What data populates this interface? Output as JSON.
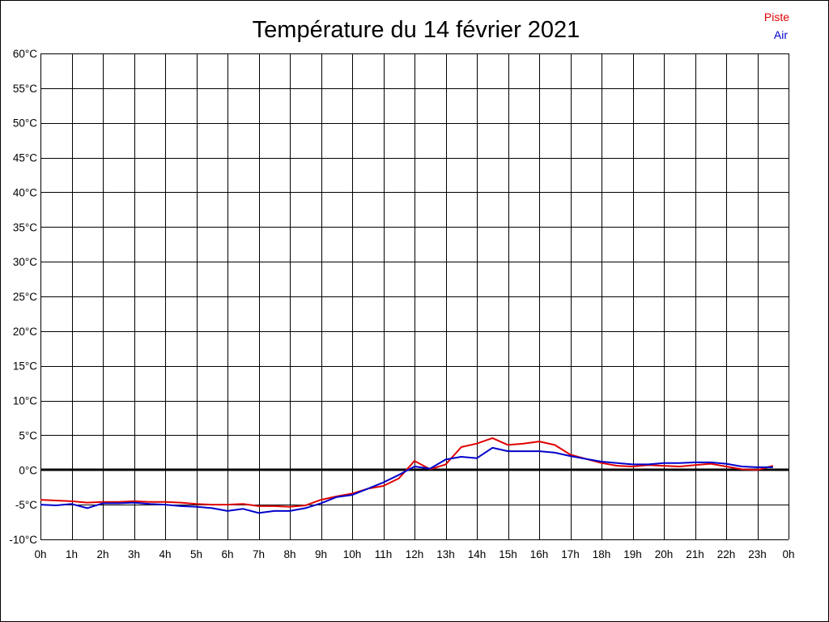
{
  "chart_data": {
    "type": "line",
    "title": "Température du 14 février 2021",
    "xlabel": "",
    "ylabel": "",
    "x_tick_labels": [
      "0h",
      "1h",
      "2h",
      "3h",
      "4h",
      "5h",
      "6h",
      "7h",
      "8h",
      "9h",
      "10h",
      "11h",
      "12h",
      "13h",
      "14h",
      "15h",
      "16h",
      "17h",
      "18h",
      "19h",
      "20h",
      "21h",
      "22h",
      "23h",
      "0h"
    ],
    "y_tick_labels": [
      "-10°C",
      "-5°C",
      "0°C",
      "5°C",
      "10°C",
      "15°C",
      "20°C",
      "25°C",
      "30°C",
      "35°C",
      "40°C",
      "45°C",
      "50°C",
      "55°C",
      "60°C"
    ],
    "xlim": [
      0,
      24
    ],
    "ylim": [
      -10,
      60
    ],
    "grid": true,
    "zero_line": true,
    "legend_position": "top-right",
    "series": [
      {
        "name": "Piste",
        "color": "#e00000",
        "x": [
          0,
          0.5,
          1,
          1.5,
          2,
          2.5,
          3,
          3.5,
          4,
          4.5,
          5,
          5.5,
          6,
          6.5,
          7,
          7.5,
          8,
          8.5,
          9,
          9.5,
          10,
          10.5,
          11,
          11.5,
          12,
          12.5,
          13,
          13.5,
          14,
          14.5,
          15,
          15.5,
          16,
          16.5,
          17,
          17.5,
          18,
          18.5,
          19,
          19.5,
          20,
          20.5,
          21,
          21.5,
          22,
          22.5,
          23,
          23.5
        ],
        "y": [
          -4.3,
          -4.4,
          -4.5,
          -4.7,
          -4.6,
          -4.6,
          -4.5,
          -4.6,
          -4.6,
          -4.7,
          -4.9,
          -5.0,
          -5.0,
          -4.9,
          -5.2,
          -5.2,
          -5.3,
          -5.1,
          -4.3,
          -3.8,
          -3.4,
          -2.7,
          -2.3,
          -1.2,
          1.3,
          0.1,
          0.8,
          3.3,
          3.8,
          4.6,
          3.6,
          3.8,
          4.1,
          3.6,
          2.2,
          1.6,
          1.0,
          0.6,
          0.5,
          0.7,
          0.6,
          0.5,
          0.7,
          0.9,
          0.5,
          0.1,
          0.0,
          0.6
        ]
      },
      {
        "name": "Air",
        "color": "#0000cc",
        "x": [
          0,
          0.5,
          1,
          1.5,
          2,
          2.5,
          3,
          3.5,
          4,
          4.5,
          5,
          5.5,
          6,
          6.5,
          7,
          7.5,
          8,
          8.5,
          9,
          9.5,
          10,
          10.5,
          11,
          11.5,
          12,
          12.5,
          13,
          13.5,
          14,
          14.5,
          15,
          15.5,
          16,
          16.5,
          17,
          17.5,
          18,
          18.5,
          19,
          19.5,
          20,
          20.5,
          21,
          21.5,
          22,
          22.5,
          23,
          23.5
        ],
        "y": [
          -5.0,
          -5.1,
          -4.9,
          -5.5,
          -4.8,
          -4.8,
          -4.7,
          -4.9,
          -5.0,
          -5.2,
          -5.3,
          -5.5,
          -5.9,
          -5.6,
          -6.2,
          -5.9,
          -5.9,
          -5.5,
          -4.8,
          -3.9,
          -3.6,
          -2.7,
          -1.8,
          -0.7,
          0.5,
          0.2,
          1.5,
          1.9,
          1.7,
          3.2,
          2.7,
          2.7,
          2.7,
          2.5,
          2.0,
          1.6,
          1.2,
          1.0,
          0.8,
          0.8,
          1.0,
          1.0,
          1.1,
          1.1,
          0.9,
          0.5,
          0.4,
          0.4
        ]
      }
    ]
  }
}
